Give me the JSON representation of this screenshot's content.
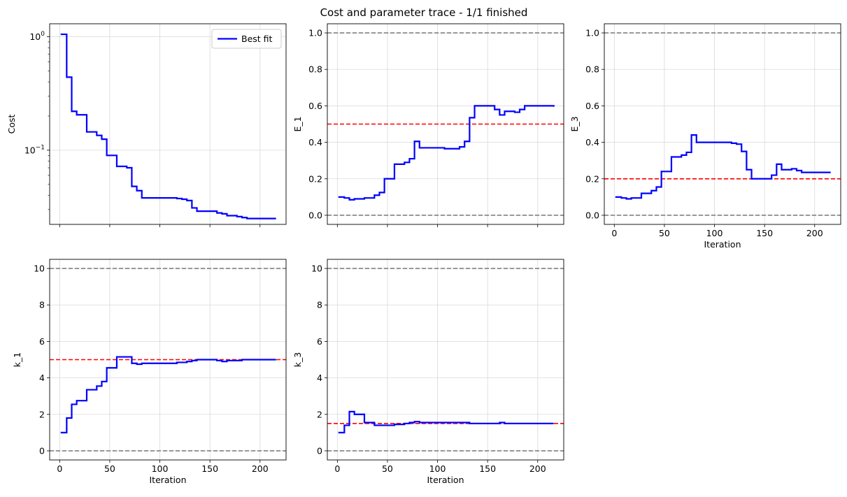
{
  "figure": {
    "title": "Cost and parameter trace - 1/1 finished"
  },
  "chart_data": [
    {
      "id": "cost",
      "type": "line",
      "scale": "log",
      "xlabel": "",
      "ylabel": "Cost",
      "xlim": [
        -10,
        226
      ],
      "ylim": [
        0.0222,
        1.3
      ],
      "xticks": [
        0,
        50,
        100,
        150,
        200
      ],
      "show_xtick_labels": false,
      "yticks": [
        1.0,
        0.1
      ],
      "ytick_labels": [
        "10^0",
        "10^-1"
      ],
      "legend": {
        "label": "Best fit",
        "position": "top-right"
      },
      "reference_lines": [],
      "series": [
        {
          "name": "Best fit",
          "color": "#0000ff",
          "step": true,
          "x": [
            1,
            7,
            12,
            17,
            27,
            37,
            42,
            47,
            57,
            67,
            72,
            77,
            82,
            107,
            117,
            122,
            127,
            132,
            137,
            157,
            162,
            167,
            177,
            182,
            187,
            216
          ],
          "y": [
            1.05,
            0.44,
            0.22,
            0.205,
            0.145,
            0.135,
            0.125,
            0.09,
            0.072,
            0.07,
            0.048,
            0.044,
            0.038,
            0.038,
            0.0375,
            0.037,
            0.036,
            0.031,
            0.029,
            0.028,
            0.0275,
            0.0265,
            0.026,
            0.0255,
            0.025,
            0.025
          ]
        }
      ]
    },
    {
      "id": "E_1",
      "type": "line",
      "xlabel": "",
      "ylabel": "E_1",
      "xlim": [
        -10,
        226
      ],
      "ylim": [
        -0.05,
        1.05
      ],
      "xticks": [
        0,
        50,
        100,
        150,
        200
      ],
      "show_xtick_labels": false,
      "yticks": [
        0.0,
        0.2,
        0.4,
        0.6,
        0.8,
        1.0
      ],
      "ytick_labels": [
        "0.0",
        "0.2",
        "0.4",
        "0.6",
        "0.8",
        "1.0"
      ],
      "reference_lines": [
        {
          "y": 1.0,
          "color": "#808080",
          "style": "dashed"
        },
        {
          "y": 0.0,
          "color": "#808080",
          "style": "dashed"
        },
        {
          "y": 0.5,
          "color": "#ff0000",
          "style": "dashed"
        }
      ],
      "series": [
        {
          "name": "Best fit",
          "color": "#0000ff",
          "step": true,
          "x": [
            1,
            7,
            12,
            17,
            27,
            37,
            42,
            47,
            57,
            67,
            72,
            77,
            82,
            107,
            117,
            122,
            127,
            132,
            137,
            157,
            162,
            167,
            177,
            182,
            187,
            216
          ],
          "y": [
            0.1,
            0.095,
            0.085,
            0.09,
            0.095,
            0.11,
            0.125,
            0.2,
            0.28,
            0.29,
            0.31,
            0.405,
            0.37,
            0.365,
            0.365,
            0.375,
            0.405,
            0.535,
            0.6,
            0.58,
            0.55,
            0.57,
            0.565,
            0.58,
            0.6,
            0.595
          ]
        }
      ]
    },
    {
      "id": "E_3",
      "type": "line",
      "xlabel": "Iteration",
      "ylabel": "E_3",
      "xlim": [
        -10,
        226
      ],
      "ylim": [
        -0.05,
        1.05
      ],
      "xticks": [
        0,
        50,
        100,
        150,
        200
      ],
      "show_xtick_labels": true,
      "yticks": [
        0.0,
        0.2,
        0.4,
        0.6,
        0.8,
        1.0
      ],
      "ytick_labels": [
        "0.0",
        "0.2",
        "0.4",
        "0.6",
        "0.8",
        "1.0"
      ],
      "reference_lines": [
        {
          "y": 1.0,
          "color": "#808080",
          "style": "dashed"
        },
        {
          "y": 0.0,
          "color": "#808080",
          "style": "dashed"
        },
        {
          "y": 0.2,
          "color": "#ff0000",
          "style": "dashed"
        }
      ],
      "series": [
        {
          "name": "Best fit",
          "color": "#0000ff",
          "step": true,
          "x": [
            1,
            7,
            12,
            17,
            27,
            37,
            42,
            47,
            57,
            67,
            72,
            77,
            82,
            107,
            117,
            122,
            127,
            132,
            137,
            157,
            162,
            167,
            177,
            182,
            187,
            216
          ],
          "y": [
            0.1,
            0.095,
            0.09,
            0.095,
            0.12,
            0.135,
            0.155,
            0.24,
            0.32,
            0.33,
            0.345,
            0.44,
            0.4,
            0.4,
            0.395,
            0.39,
            0.35,
            0.25,
            0.2,
            0.22,
            0.28,
            0.25,
            0.255,
            0.245,
            0.235,
            0.235
          ]
        }
      ]
    },
    {
      "id": "k_1",
      "type": "line",
      "xlabel": "Iteration",
      "ylabel": "k_1",
      "xlim": [
        -10,
        226
      ],
      "ylim": [
        -0.5,
        10.5
      ],
      "xticks": [
        0,
        50,
        100,
        150,
        200
      ],
      "show_xtick_labels": true,
      "yticks": [
        0,
        2,
        4,
        6,
        8,
        10
      ],
      "ytick_labels": [
        "0",
        "2",
        "4",
        "6",
        "8",
        "10"
      ],
      "reference_lines": [
        {
          "y": 10,
          "color": "#808080",
          "style": "dashed"
        },
        {
          "y": 0,
          "color": "#808080",
          "style": "dashed"
        },
        {
          "y": 5,
          "color": "#ff0000",
          "style": "dashed"
        }
      ],
      "series": [
        {
          "name": "Best fit",
          "color": "#0000ff",
          "step": true,
          "x": [
            1,
            7,
            12,
            17,
            27,
            37,
            42,
            47,
            57,
            67,
            72,
            77,
            82,
            107,
            117,
            122,
            127,
            132,
            137,
            157,
            162,
            167,
            177,
            182,
            187,
            216
          ],
          "y": [
            1.0,
            1.8,
            2.55,
            2.75,
            3.35,
            3.55,
            3.8,
            4.55,
            5.15,
            5.15,
            4.8,
            4.75,
            4.8,
            4.8,
            4.85,
            4.85,
            4.9,
            4.95,
            5.0,
            4.95,
            4.9,
            4.95,
            4.95,
            5.0,
            5.0,
            5.0
          ]
        }
      ]
    },
    {
      "id": "k_3",
      "type": "line",
      "xlabel": "Iteration",
      "ylabel": "k_3",
      "xlim": [
        -10,
        226
      ],
      "ylim": [
        -0.5,
        10.5
      ],
      "xticks": [
        0,
        50,
        100,
        150,
        200
      ],
      "show_xtick_labels": true,
      "yticks": [
        0,
        2,
        4,
        6,
        8,
        10
      ],
      "ytick_labels": [
        "0",
        "2",
        "4",
        "6",
        "8",
        "10"
      ],
      "reference_lines": [
        {
          "y": 10,
          "color": "#808080",
          "style": "dashed"
        },
        {
          "y": 0,
          "color": "#808080",
          "style": "dashed"
        },
        {
          "y": 1.5,
          "color": "#ff0000",
          "style": "dashed"
        }
      ],
      "series": [
        {
          "name": "Best fit",
          "color": "#0000ff",
          "step": true,
          "x": [
            1,
            7,
            12,
            17,
            27,
            37,
            42,
            47,
            57,
            67,
            72,
            77,
            82,
            107,
            117,
            122,
            127,
            132,
            137,
            157,
            162,
            167,
            177,
            182,
            187,
            216
          ],
          "y": [
            1.0,
            1.4,
            2.15,
            2.0,
            1.55,
            1.4,
            1.4,
            1.4,
            1.45,
            1.5,
            1.55,
            1.6,
            1.55,
            1.55,
            1.55,
            1.55,
            1.55,
            1.5,
            1.5,
            1.5,
            1.55,
            1.5,
            1.5,
            1.5,
            1.5,
            1.5
          ]
        }
      ]
    }
  ]
}
